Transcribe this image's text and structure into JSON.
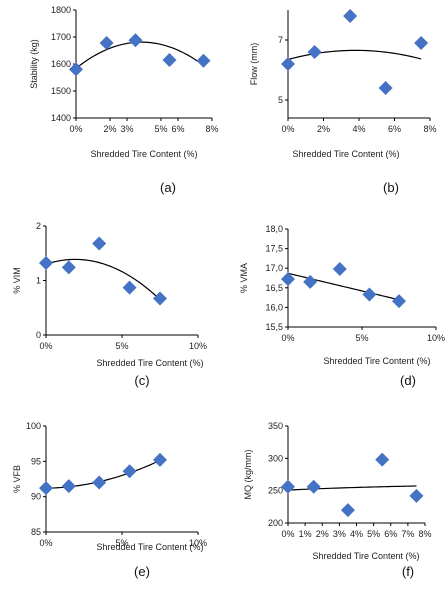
{
  "chart_data": [
    {
      "type": "scatter",
      "panel_label": "(a)",
      "xlabel": "Shredded Tire Content  (%)",
      "ylabel": "Stability (kg)",
      "xlim": [
        0,
        8
      ],
      "ylim": [
        1400,
        1800
      ],
      "xticks": [
        0,
        2,
        3,
        5,
        6,
        8
      ],
      "xtick_labels": [
        "0%",
        "2%",
        "3%",
        "5%",
        "6%",
        "8%"
      ],
      "yticks": [
        1400,
        1500,
        1600,
        1700,
        1800
      ],
      "ytick_labels": [
        "1400",
        "1500",
        "1600",
        "1700",
        "1800"
      ],
      "x": [
        0,
        1.8,
        3.5,
        5.5,
        7.5
      ],
      "y": [
        1580,
        1678,
        1688,
        1615,
        1612
      ],
      "trend": {
        "type": "poly2",
        "coeffs": [
          1584,
          50.2,
          -6.5
        ],
        "x_range": [
          0,
          7.5
        ]
      }
    },
    {
      "type": "scatter",
      "panel_label": "(b)",
      "xlabel": "Shredded Tire Content  (%)",
      "ylabel": "Flow (mm)",
      "xlim": [
        0,
        8
      ],
      "ylim": [
        4.4,
        8.0
      ],
      "xticks": [
        0,
        2,
        4,
        6,
        8
      ],
      "xtick_labels": [
        "0%",
        "2%",
        "4%",
        "6%",
        "8%"
      ],
      "yticks": [
        5,
        7
      ],
      "ytick_labels": [
        "5",
        "7"
      ],
      "x": [
        0,
        1.5,
        3.5,
        5.5,
        7.5
      ],
      "y": [
        6.2,
        6.6,
        7.8,
        5.4,
        6.9
      ],
      "trend": {
        "type": "poly2",
        "coeffs": [
          6.35,
          0.16,
          -0.021
        ],
        "x_range": [
          0,
          7.5
        ]
      }
    },
    {
      "type": "scatter",
      "panel_label": "(c)",
      "xlabel": "Shredded Tire Content  (%)",
      "ylabel": "% VIM",
      "xlim": [
        0,
        10
      ],
      "ylim": [
        0,
        2
      ],
      "xticks": [
        0,
        5,
        10
      ],
      "xtick_labels": [
        "0%",
        "5%",
        "10%"
      ],
      "yticks": [
        0,
        1,
        2
      ],
      "ytick_labels": [
        "0",
        "1",
        "2"
      ],
      "x": [
        0,
        1.5,
        3.5,
        5.5,
        7.5
      ],
      "y": [
        1.32,
        1.24,
        1.68,
        0.87,
        0.67
      ],
      "trend": {
        "type": "poly2",
        "coeffs": [
          1.3,
          0.091,
          -0.0237
        ],
        "x_range": [
          0,
          7.5
        ]
      }
    },
    {
      "type": "scatter",
      "panel_label": "(d)",
      "xlabel": "Shredded Tire Content  (%)",
      "ylabel": "% VMA",
      "xlim": [
        0,
        10
      ],
      "ylim": [
        15.5,
        18.0
      ],
      "xticks": [
        0,
        5,
        10
      ],
      "xtick_labels": [
        "0%",
        "5%",
        "10%"
      ],
      "yticks": [
        15.5,
        16.0,
        16.5,
        17.0,
        17.5,
        18.0
      ],
      "ytick_labels": [
        "15,5",
        "16,0",
        "16,5",
        "17,0",
        "17,5",
        "18,0"
      ],
      "x": [
        0,
        1.5,
        3.5,
        5.5,
        7.5
      ],
      "y": [
        16.72,
        16.65,
        16.98,
        16.33,
        16.16
      ],
      "trend": {
        "type": "linear",
        "coeffs": [
          16.87,
          -0.09
        ],
        "x_range": [
          0,
          7.5
        ]
      }
    },
    {
      "type": "scatter",
      "panel_label": "(e)",
      "xlabel": "Shredded Tire Content  (%)",
      "ylabel": "% VFB",
      "xlim": [
        0,
        10
      ],
      "ylim": [
        85,
        100
      ],
      "xticks": [
        0,
        5,
        10
      ],
      "xtick_labels": [
        "0%",
        "5%",
        "10%"
      ],
      "yticks": [
        85,
        90,
        95,
        100
      ],
      "ytick_labels": [
        "85",
        "90",
        "95",
        "100"
      ],
      "x": [
        0,
        1.5,
        3.5,
        5.5,
        7.5
      ],
      "y": [
        91.2,
        91.5,
        92.0,
        93.6,
        95.2
      ],
      "trend": {
        "type": "poly2",
        "coeffs": [
          91.2,
          0.03,
          0.066
        ],
        "x_range": [
          0,
          7.5
        ]
      }
    },
    {
      "type": "scatter",
      "panel_label": "(f)",
      "xlabel": "Shredded Tire Content  (%)",
      "ylabel": "MQ (kg/mm)",
      "xlim": [
        0,
        8
      ],
      "ylim": [
        200,
        350
      ],
      "xticks": [
        0,
        1,
        2,
        3,
        4,
        5,
        6,
        7,
        8
      ],
      "xtick_labels": [
        "0%",
        "1%",
        "2%",
        "3%",
        "4%",
        "5%",
        "6%",
        "7%",
        "8%"
      ],
      "yticks": [
        200,
        250,
        300,
        350
      ],
      "ytick_labels": [
        "200",
        "250",
        "300",
        "350"
      ],
      "x": [
        0,
        1.5,
        3.5,
        5.5,
        7.5
      ],
      "y": [
        256,
        256,
        220,
        298,
        242
      ],
      "trend": {
        "type": "poly2",
        "coeffs": [
          251,
          1.2,
          -0.05
        ],
        "x_range": [
          0,
          7.5
        ]
      }
    }
  ]
}
